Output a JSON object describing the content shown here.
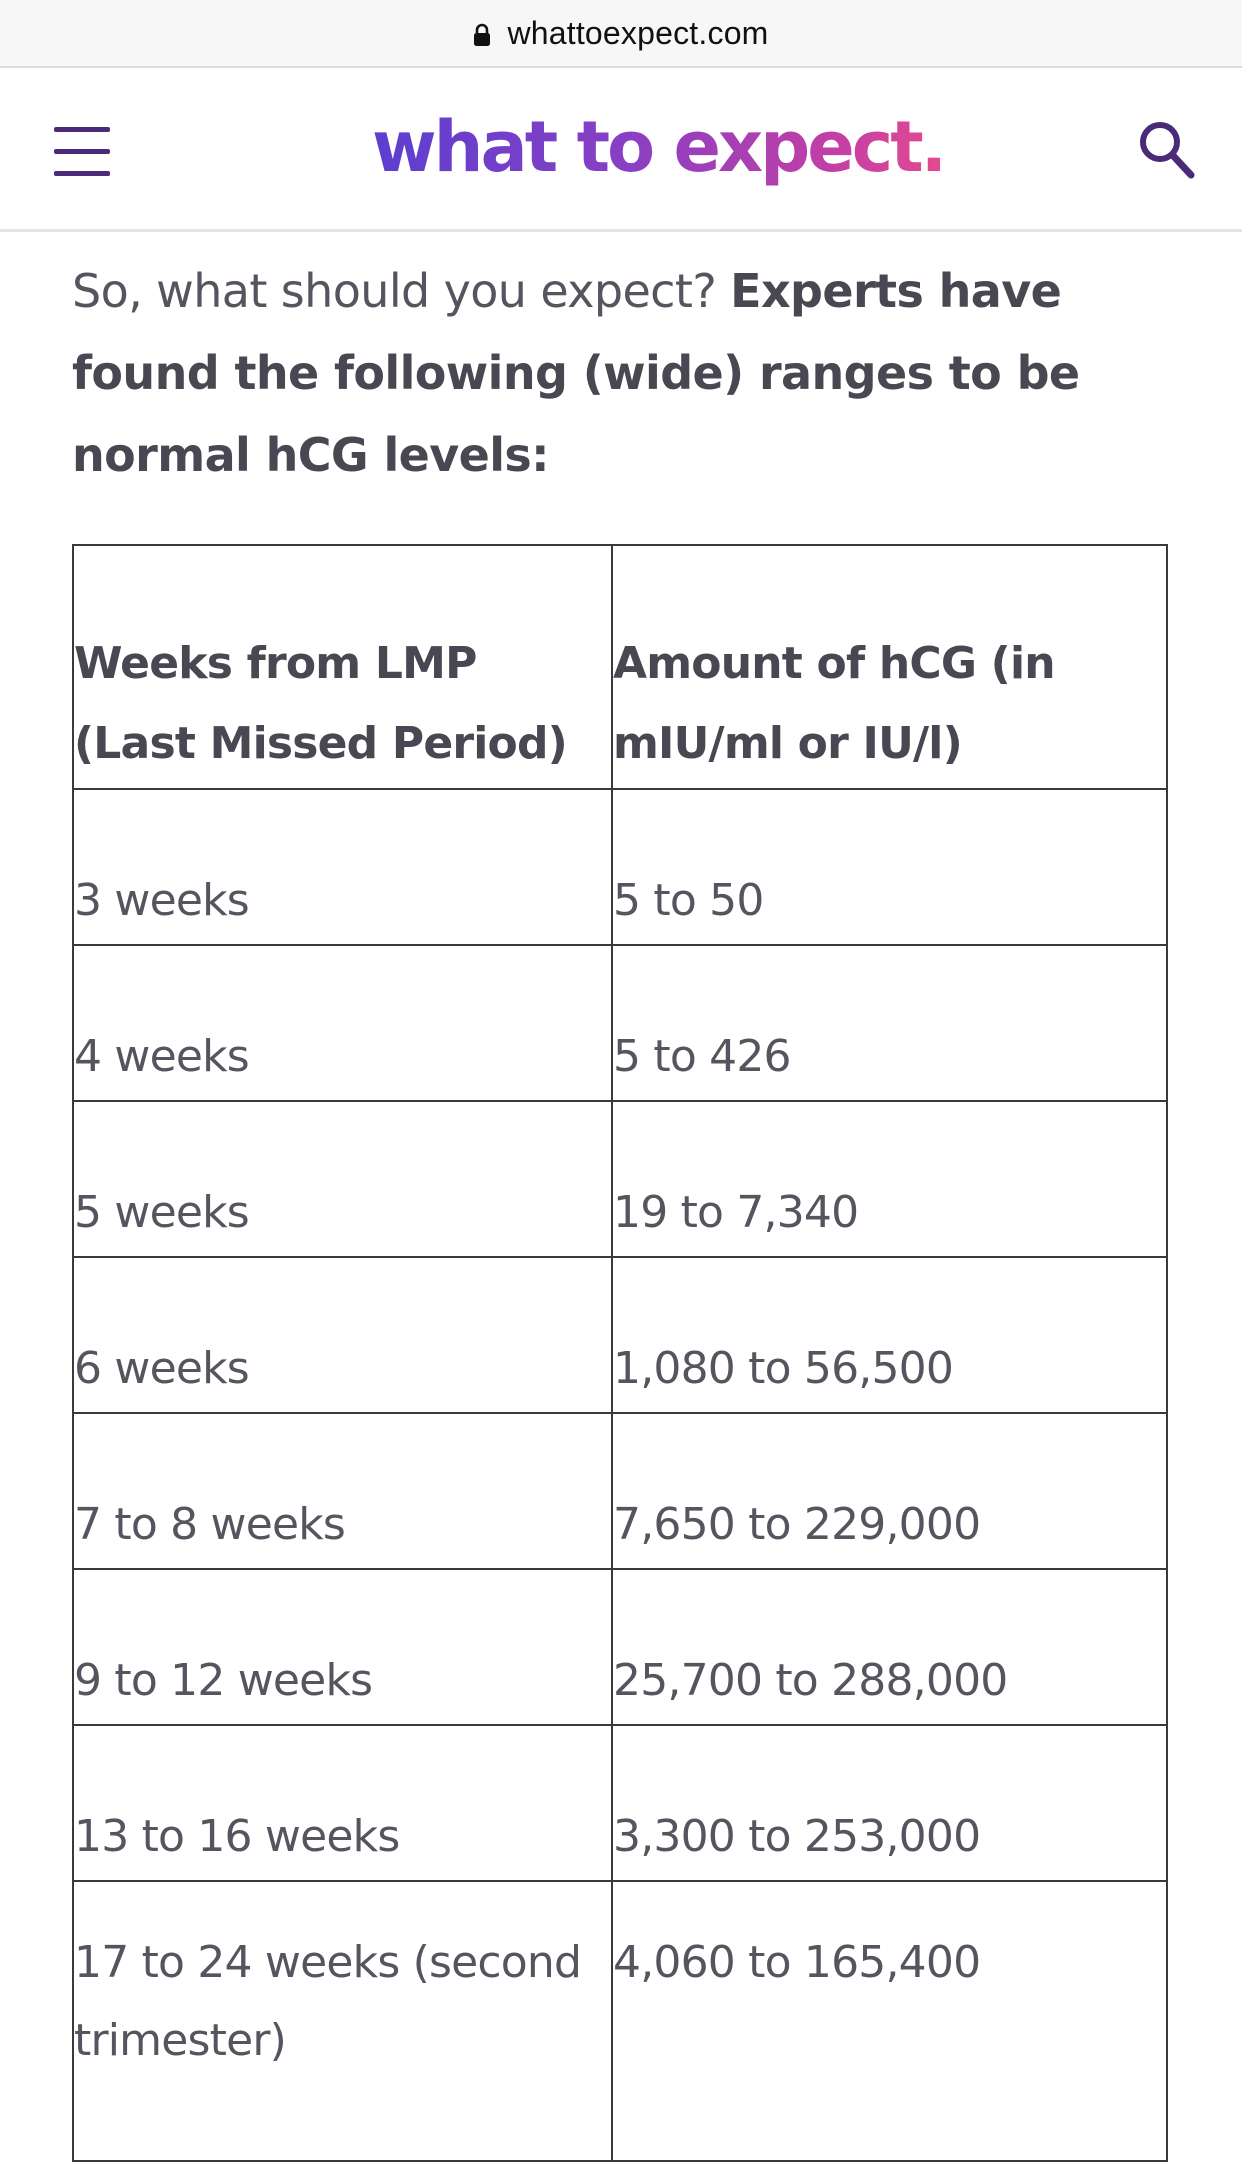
{
  "browser": {
    "url": "whattoexpect.com",
    "lock_icon": "lock-icon"
  },
  "header": {
    "menu_icon": "hamburger-menu-icon",
    "logo_text": "what to expect.",
    "search_icon": "search-icon",
    "accent_color": "#4b2a78"
  },
  "article": {
    "intro_plain": "So, what should you expect? ",
    "intro_bold": "Experts have found the following (wide) ranges to be normal hCG levels:"
  },
  "table": {
    "headers": [
      "Weeks from LMP (Last Missed Period)",
      "Amount of hCG (in mIU/ml or IU/l)"
    ],
    "rows": [
      [
        "3 weeks",
        "5 to 50"
      ],
      [
        "4 weeks",
        "5 to 426"
      ],
      [
        "5 weeks",
        "19 to 7,340"
      ],
      [
        "6 weeks",
        "1,080 to 56,500"
      ],
      [
        "7 to 8 weeks",
        "7,650 to 229,000"
      ],
      [
        "9 to 12 weeks",
        "25,700 to 288,000"
      ],
      [
        "13 to 16 weeks",
        "3,300 to 253,000"
      ],
      [
        "17 to 24 weeks (second trimester)",
        "4,060 to 165,400"
      ]
    ]
  }
}
